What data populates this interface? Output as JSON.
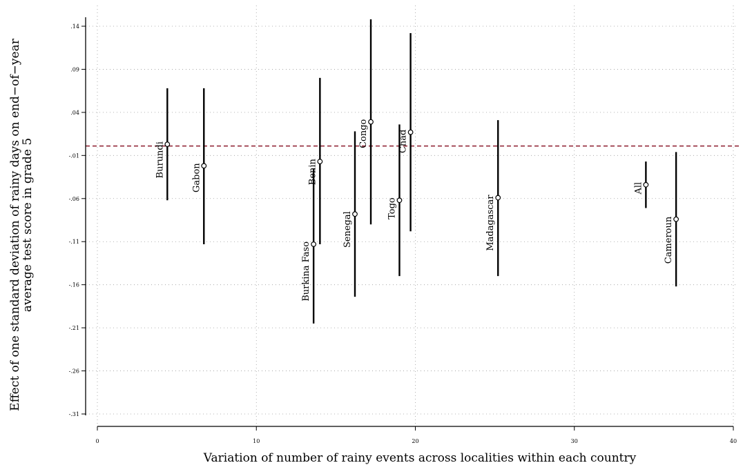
{
  "chart_data": {
    "type": "scatter",
    "title": "",
    "xlabel": "Variation of number of rainy events across localities within each country",
    "ylabel_line1": "Effect of one standard deviation of rainy days on end−of−year",
    "ylabel_line2": "average test score in grade 5",
    "xlim": [
      0,
      40
    ],
    "ylim": [
      -0.31,
      0.14
    ],
    "x_ticks": [
      0,
      10,
      20,
      30,
      40
    ],
    "x_tick_labels": [
      "0",
      "10",
      "20",
      "30",
      "40"
    ],
    "y_ticks": [
      0.14,
      0.09,
      0.04,
      -0.01,
      -0.06,
      -0.11,
      -0.16,
      -0.21,
      -0.26,
      -0.31
    ],
    "y_tick_labels": [
      ".14",
      ".09",
      ".04",
      "-.01",
      "-.06",
      "-.11",
      "-.16",
      "-.21",
      "-.26",
      "-.31"
    ],
    "grid": true,
    "reference_line": {
      "y": 0.001,
      "color": "#8b1a2b"
    },
    "points": [
      {
        "label": "Burundi",
        "x": 4.4,
        "y": 0.003,
        "ci": [
          -0.062,
          0.068
        ]
      },
      {
        "label": "Gabon",
        "x": 6.7,
        "y": -0.022,
        "ci": [
          -0.113,
          0.068
        ]
      },
      {
        "label": "Burkina Faso",
        "x": 13.6,
        "y": -0.113,
        "ci": [
          -0.205,
          -0.025
        ]
      },
      {
        "label": "Benin",
        "x": 14.0,
        "y": -0.017,
        "ci": [
          -0.113,
          0.08
        ]
      },
      {
        "label": "Senegal",
        "x": 16.2,
        "y": -0.078,
        "ci": [
          -0.174,
          0.018
        ]
      },
      {
        "label": "Congo",
        "x": 17.2,
        "y": 0.029,
        "ci": [
          -0.09,
          0.148
        ]
      },
      {
        "label": "Togo",
        "x": 19.0,
        "y": -0.062,
        "ci": [
          -0.15,
          0.026
        ]
      },
      {
        "label": "Chad",
        "x": 19.7,
        "y": 0.017,
        "ci": [
          -0.098,
          0.132
        ]
      },
      {
        "label": "Madagascar",
        "x": 25.2,
        "y": -0.059,
        "ci": [
          -0.15,
          0.031
        ]
      },
      {
        "label": "All",
        "x": 34.5,
        "y": -0.044,
        "ci": [
          -0.071,
          -0.017
        ]
      },
      {
        "label": "Cameroun",
        "x": 36.4,
        "y": -0.084,
        "ci": [
          -0.162,
          -0.006
        ]
      }
    ],
    "colors": {
      "marks": "#000000",
      "reference_line": "#8b1a2b",
      "grid": "#9a9a9a"
    }
  }
}
